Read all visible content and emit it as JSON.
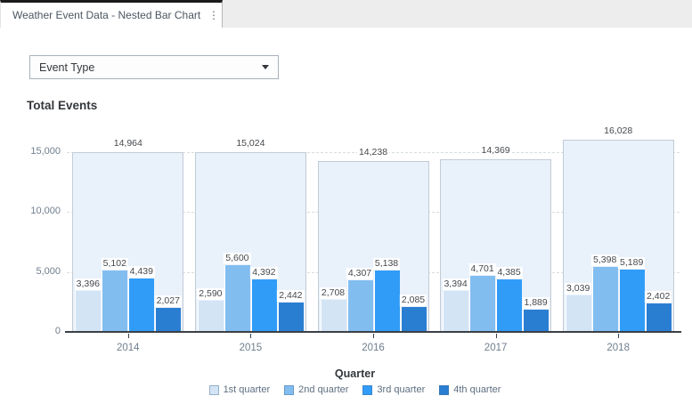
{
  "tab": {
    "title": "Weather Event Data - Nested Bar Chart",
    "menu_icon": "kebab-menu-icon"
  },
  "dropdown": {
    "value": "Event Type",
    "icon": "caret-down-icon"
  },
  "chart_data": {
    "type": "bar",
    "subtype": "nested-grouped",
    "title": "Total Events",
    "xlabel": "Quarter",
    "ylabel": "",
    "categories": [
      "2014",
      "2015",
      "2016",
      "2017",
      "2018"
    ],
    "totals": [
      14964,
      15024,
      14238,
      14369,
      16028
    ],
    "series": [
      {
        "name": "1st quarter",
        "color": "#d3e4f5",
        "values": [
          3396,
          2590,
          2708,
          3394,
          3039
        ]
      },
      {
        "name": "2nd quarter",
        "color": "#82bdf0",
        "values": [
          5102,
          5600,
          4307,
          4701,
          5398
        ]
      },
      {
        "name": "3rd quarter",
        "color": "#309cf7",
        "values": [
          4439,
          4392,
          5138,
          4385,
          5189
        ]
      },
      {
        "name": "4th quarter",
        "color": "#2a7ed2",
        "values": [
          2027,
          2442,
          2085,
          1889,
          2402
        ]
      }
    ],
    "ylim": [
      0,
      16500
    ],
    "yticks": [
      0,
      5000,
      10000,
      15000
    ],
    "grid": "horizontal-dashed",
    "legend_position": "bottom",
    "outer_bar_fill": "#e9f1fb",
    "outer_bar_border": "#c3ccd5",
    "value_labels_shown": true
  }
}
